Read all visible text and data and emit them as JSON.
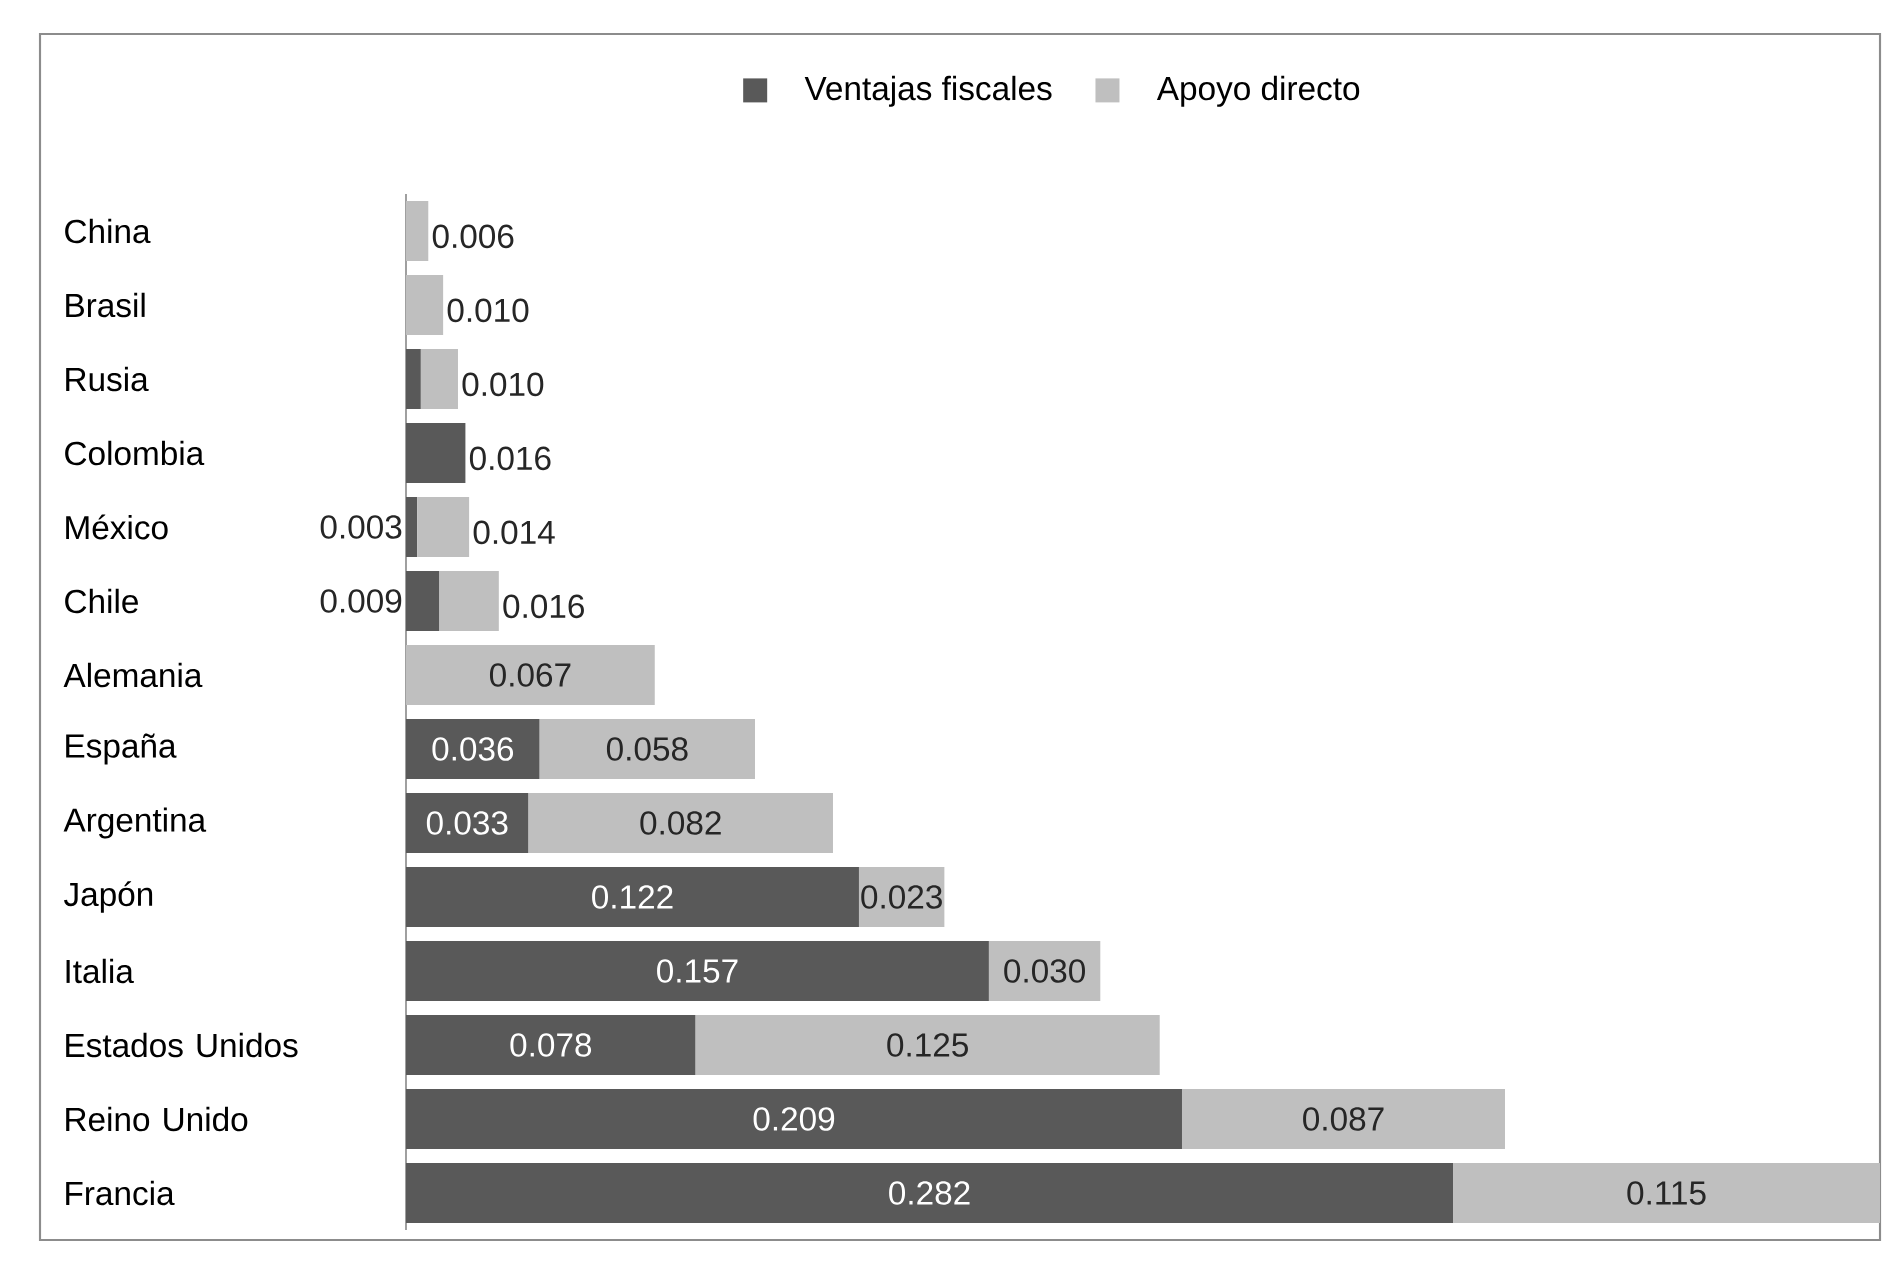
{
  "chart_data": {
    "type": "bar",
    "orientation": "horizontal",
    "stacked": true,
    "legend": "top",
    "categories": [
      "China",
      "Brasil",
      "Rusia",
      "Colombia",
      "México",
      "Chile",
      "Alemania",
      "España",
      "Argentina",
      "Japón",
      "Italia",
      "Estados Unidos",
      "Reino Unido",
      "Francia"
    ],
    "series": [
      {
        "name": "Ventajas fiscales",
        "color": "#595959",
        "values": [
          null,
          null,
          0.004,
          0.016,
          0.003,
          0.009,
          null,
          0.036,
          0.033,
          0.122,
          0.157,
          0.078,
          0.209,
          0.282
        ],
        "value_labels": [
          null,
          null,
          null,
          "0.016",
          "0.003",
          "0.009",
          null,
          "0.036",
          "0.033",
          "0.122",
          "0.157",
          "0.078",
          "0.209",
          "0.282"
        ]
      },
      {
        "name": "Apoyo directo",
        "color": "#bfbfbf",
        "values": [
          0.006,
          0.01,
          0.01,
          null,
          0.014,
          0.016,
          0.067,
          0.058,
          0.082,
          0.023,
          0.03,
          0.125,
          0.087,
          0.115
        ],
        "value_labels": [
          "0.006",
          "0.010",
          "0.010",
          null,
          "0.014",
          "0.016",
          "0.067",
          "0.058",
          "0.082",
          "0.023",
          "0.030",
          "0.125",
          "0.087",
          "0.115"
        ]
      }
    ]
  }
}
